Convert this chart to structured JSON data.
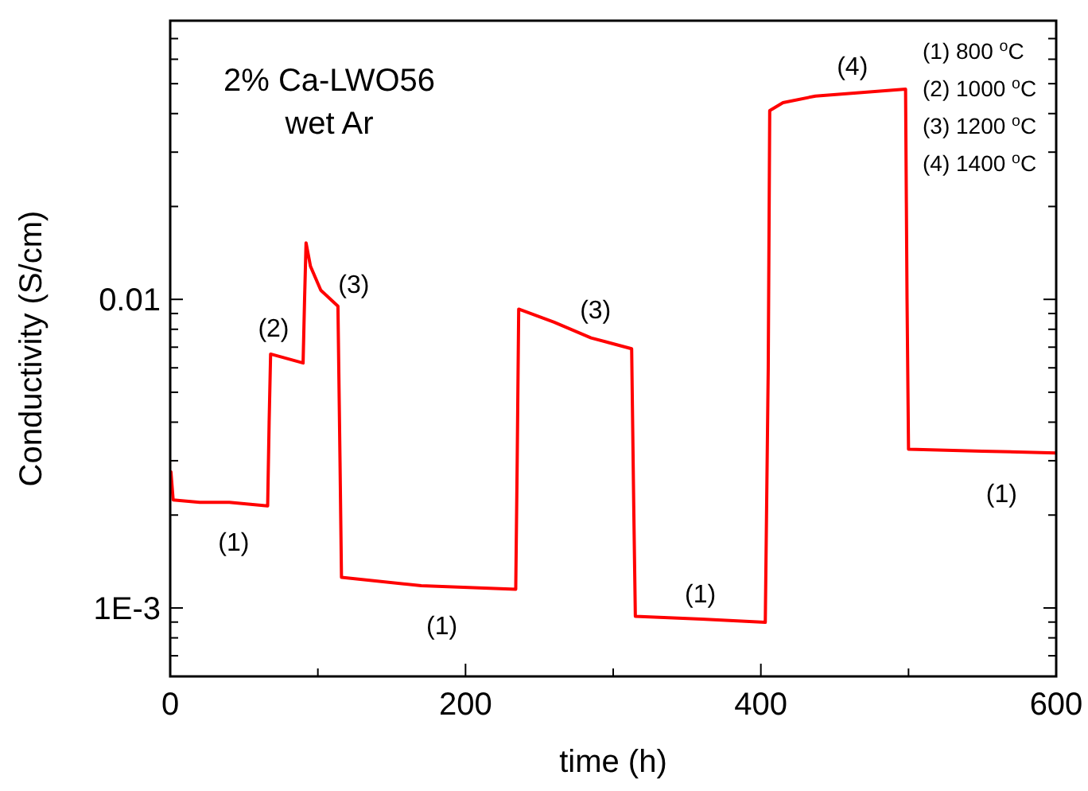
{
  "chart_data": {
    "type": "line",
    "title": "2% Ca-LWO56",
    "subtitle": "wet Ar",
    "xlabel": "time (h)",
    "ylabel": "Conductivity (S/cm)",
    "log": "y",
    "grid": false,
    "xlim": [
      0,
      600
    ],
    "ylim": [
      0.0006,
      0.08
    ],
    "xticks": [
      0,
      {
        "value": 100,
        "label": null
      },
      200,
      {
        "value": 300,
        "label": null
      },
      400,
      {
        "value": 500,
        "label": null
      },
      600
    ],
    "yticks": [
      {
        "value": 0.0006,
        "label": null
      },
      {
        "value": 0.0007,
        "label": null
      },
      {
        "value": 0.0008,
        "label": null
      },
      {
        "value": 0.0009,
        "label": null
      },
      {
        "value": 0.001,
        "label": "1E-3"
      },
      {
        "value": 0.002,
        "label": null
      },
      {
        "value": 0.003,
        "label": null
      },
      {
        "value": 0.004,
        "label": null
      },
      {
        "value": 0.005,
        "label": null
      },
      {
        "value": 0.006,
        "label": null
      },
      {
        "value": 0.007,
        "label": null
      },
      {
        "value": 0.008,
        "label": null
      },
      {
        "value": 0.009,
        "label": null
      },
      0.01,
      {
        "value": 0.02,
        "label": null
      },
      {
        "value": 0.03,
        "label": null
      },
      {
        "value": 0.04,
        "label": null
      },
      {
        "value": 0.05,
        "label": null
      },
      {
        "value": 0.06,
        "label": null
      },
      {
        "value": 0.07,
        "label": null
      },
      {
        "value": 0.08,
        "label": null
      }
    ],
    "series": [
      {
        "color": "#ff0000",
        "x": [
          0,
          0.5,
          2,
          20,
          40,
          66,
          67,
          68,
          90,
          91,
          92,
          95,
          102,
          113.6,
          115,
          116,
          170,
          234,
          235,
          236,
          260,
          285,
          312.5,
          314,
          315,
          360,
          403,
          405,
          406,
          415,
          437,
          498,
          499,
          500,
          550,
          600
        ],
        "values": [
          0.00276,
          0.00276,
          0.00224,
          0.0022,
          0.0022,
          0.00214,
          0.004,
          0.00665,
          0.00622,
          0.01,
          0.01525,
          0.0128,
          0.0107,
          0.0095,
          0.003,
          0.001256,
          0.00118,
          0.00115,
          0.003,
          0.0093,
          0.00843,
          0.0075,
          0.00692,
          0.002,
          0.00094,
          0.00092,
          0.000898,
          0.006,
          0.0409,
          0.0434,
          0.0456,
          0.048,
          0.01,
          0.00327,
          0.00322,
          0.00318
        ]
      }
    ],
    "annotations": [
      "(1) 800 $^{o}$C",
      "(2) 1000 $^{o}$C",
      "(3) 1200 $^{o}$C",
      "(4) 1400 $^{o}$C",
      {
        "text": "(1)",
        "x": 43,
        "y": 0.0022
      },
      {
        "text": "(2)",
        "x": 70,
        "y": 0.0066
      },
      {
        "text": "(3)",
        "x": 113.6,
        "y": 0.0095
      },
      {
        "text": "(1)",
        "x": 184,
        "y": 0.00117
      },
      {
        "text": "(3)",
        "x": 288,
        "y": 0.0074
      },
      {
        "text": "(1)",
        "x": 359,
        "y": 0.00092
      },
      {
        "text": "(4)",
        "x": 462,
        "y": 0.0466
      },
      {
        "text": "(1)",
        "x": 563,
        "y": 0.0032
      }
    ]
  }
}
